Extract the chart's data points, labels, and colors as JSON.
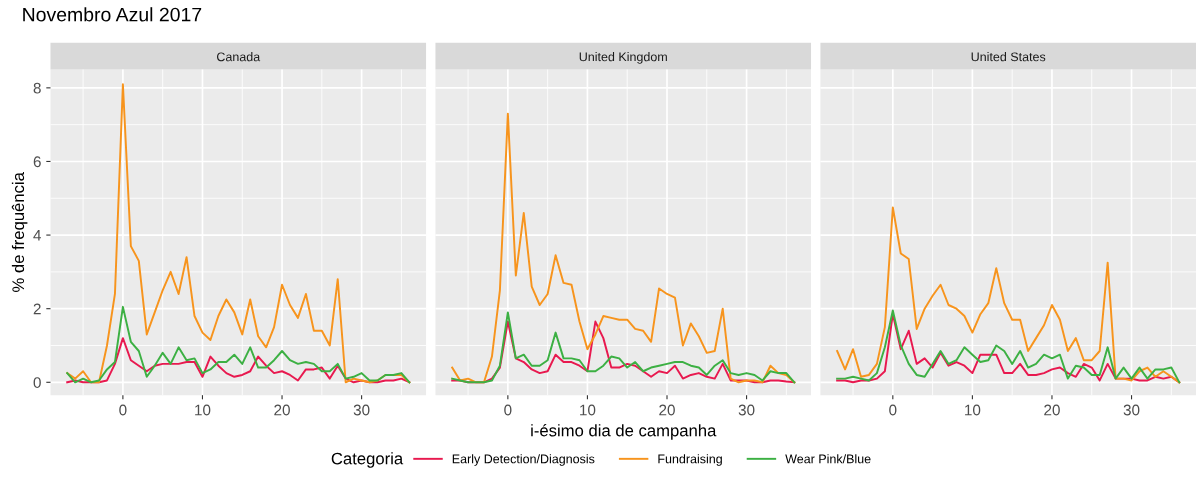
{
  "chart_data": [
    {
      "type": "line",
      "title": "Novembro Azul 2017",
      "subtitle": "Canada",
      "ylabel": "% de frequência",
      "legend_title": "Categoria",
      "legend": "bottom",
      "grid": true,
      "xlim": [
        -9.1,
        38.1
      ],
      "ylim": [
        -0.35,
        8.5
      ],
      "xticks": [
        0,
        10,
        20,
        30
      ],
      "yticks": [
        0,
        2,
        4,
        6,
        8
      ],
      "x": [
        -7,
        -6,
        -5,
        -4,
        -3,
        -2,
        -1,
        0,
        1,
        2,
        3,
        4,
        5,
        6,
        7,
        8,
        9,
        10,
        11,
        12,
        13,
        14,
        15,
        16,
        17,
        18,
        19,
        20,
        21,
        22,
        23,
        24,
        25,
        26,
        27,
        28,
        29,
        30,
        31,
        32,
        33,
        34,
        35,
        36
      ],
      "series": [
        {
          "name": "Early Detection/Diagnosis",
          "color": "#e8194f",
          "values": [
            0,
            0.05,
            0,
            0,
            0,
            0.05,
            0.5,
            1.2,
            0.6,
            0.45,
            0.3,
            0.45,
            0.5,
            0.5,
            0.5,
            0.55,
            0.55,
            0.15,
            0.7,
            0.45,
            0.25,
            0.15,
            0.2,
            0.3,
            0.7,
            0.45,
            0.25,
            0.3,
            0.2,
            0.05,
            0.35,
            0.35,
            0.4,
            0.1,
            0.45,
            0.1,
            0,
            0.05,
            0,
            0,
            0.05,
            0.05,
            0.1,
            0
          ]
        },
        {
          "name": "Fundraising",
          "color": "#f7941d",
          "values": [
            0.25,
            0.1,
            0.3,
            0,
            0,
            1.0,
            2.4,
            8.1,
            3.7,
            3.3,
            1.3,
            1.9,
            2.5,
            3.0,
            2.4,
            3.4,
            1.8,
            1.35,
            1.15,
            1.8,
            2.25,
            1.9,
            1.3,
            2.25,
            1.25,
            0.95,
            1.5,
            2.65,
            2.1,
            1.75,
            2.4,
            1.4,
            1.4,
            1.0,
            2.8,
            0,
            0.1,
            0.05,
            0,
            0.05,
            0.2,
            0.2,
            0.2,
            0
          ]
        },
        {
          "name": "Wear Pink/Blue",
          "color": "#3cb043",
          "values": [
            0.25,
            0,
            0.1,
            0,
            0.05,
            0.35,
            0.55,
            2.05,
            1.1,
            0.85,
            0.15,
            0.45,
            0.8,
            0.5,
            0.95,
            0.6,
            0.65,
            0.25,
            0.35,
            0.55,
            0.55,
            0.75,
            0.5,
            0.95,
            0.4,
            0.4,
            0.6,
            0.85,
            0.6,
            0.5,
            0.55,
            0.5,
            0.3,
            0.3,
            0.5,
            0.1,
            0.15,
            0.25,
            0.05,
            0.05,
            0.2,
            0.2,
            0.25,
            0
          ]
        }
      ]
    },
    {
      "type": "line",
      "subtitle": "United Kingdom",
      "xlabel": "i-ésimo dia de campanha",
      "grid": true,
      "tick_labels": "x",
      "xlim": [
        -9.1,
        38.1
      ],
      "ylim": [
        -0.35,
        8.5
      ],
      "xticks": [
        0,
        10,
        20,
        30
      ],
      "yticks": [
        0,
        2,
        4,
        6,
        8
      ],
      "x": [
        -7,
        -6,
        -5,
        -4,
        -3,
        -2,
        -1,
        0,
        1,
        2,
        3,
        4,
        5,
        6,
        7,
        8,
        9,
        10,
        11,
        12,
        13,
        14,
        15,
        16,
        17,
        18,
        19,
        20,
        21,
        22,
        23,
        24,
        25,
        26,
        27,
        28,
        29,
        30,
        31,
        32,
        33,
        34,
        35,
        36
      ],
      "series": [
        {
          "color": "#e8194f",
          "values": [
            0.05,
            0.05,
            0,
            0,
            0,
            0.1,
            0.4,
            1.65,
            0.65,
            0.55,
            0.35,
            0.25,
            0.3,
            0.75,
            0.55,
            0.55,
            0.45,
            0.3,
            1.65,
            1.2,
            0.4,
            0.4,
            0.5,
            0.45,
            0.3,
            0.15,
            0.3,
            0.25,
            0.45,
            0.1,
            0.2,
            0.25,
            0.15,
            0.1,
            0.5,
            0.05,
            0.05,
            0.05,
            0,
            0,
            0.05,
            0.05,
            0.02,
            0
          ]
        },
        {
          "color": "#f7941d",
          "values": [
            0.4,
            0.05,
            0.1,
            0,
            0,
            0.7,
            2.5,
            7.3,
            2.9,
            4.6,
            2.6,
            2.1,
            2.4,
            3.45,
            2.7,
            2.65,
            1.65,
            0.9,
            1.3,
            1.8,
            1.75,
            1.7,
            1.7,
            1.45,
            1.4,
            1.1,
            2.55,
            2.4,
            2.3,
            1.0,
            1.6,
            1.25,
            0.8,
            0.85,
            2.0,
            0.1,
            0,
            0.05,
            0.05,
            0,
            0.45,
            0.25,
            0.2,
            0
          ]
        },
        {
          "color": "#3cb043",
          "values": [
            0.1,
            0.05,
            0,
            0,
            0,
            0.05,
            0.45,
            1.9,
            0.65,
            0.75,
            0.45,
            0.45,
            0.6,
            1.35,
            0.65,
            0.65,
            0.6,
            0.3,
            0.3,
            0.45,
            0.7,
            0.65,
            0.4,
            0.55,
            0.3,
            0.4,
            0.45,
            0.5,
            0.55,
            0.55,
            0.45,
            0.4,
            0.2,
            0.45,
            0.6,
            0.25,
            0.2,
            0.25,
            0.2,
            0.05,
            0.3,
            0.25,
            0.25,
            0
          ]
        }
      ]
    },
    {
      "type": "line",
      "subtitle": "United States",
      "grid": true,
      "tick_labels": "x",
      "xlim": [
        -9.1,
        38.1
      ],
      "ylim": [
        -0.35,
        8.5
      ],
      "xticks": [
        0,
        10,
        20,
        30
      ],
      "yticks": [
        0,
        2,
        4,
        6,
        8
      ],
      "x": [
        -7,
        -6,
        -5,
        -4,
        -3,
        -2,
        -1,
        0,
        1,
        2,
        3,
        4,
        5,
        6,
        7,
        8,
        9,
        10,
        11,
        12,
        13,
        14,
        15,
        16,
        17,
        18,
        19,
        20,
        21,
        22,
        23,
        24,
        25,
        26,
        27,
        28,
        29,
        30,
        31,
        32,
        33,
        34,
        35,
        36
      ],
      "series": [
        {
          "color": "#e8194f",
          "values": [
            0.05,
            0.05,
            0,
            0.05,
            0.05,
            0.1,
            0.3,
            1.85,
            0.9,
            1.4,
            0.5,
            0.65,
            0.4,
            0.8,
            0.45,
            0.55,
            0.45,
            0.25,
            0.75,
            0.75,
            0.75,
            0.25,
            0.25,
            0.5,
            0.2,
            0.2,
            0.25,
            0.35,
            0.4,
            0.25,
            0.15,
            0.5,
            0.4,
            0.05,
            0.5,
            0.1,
            0.1,
            0.1,
            0.05,
            0.05,
            0.15,
            0.1,
            0.15,
            0
          ]
        },
        {
          "color": "#f7941d",
          "values": [
            0.85,
            0.35,
            0.9,
            0.15,
            0.2,
            0.5,
            1.5,
            4.75,
            3.5,
            3.35,
            1.45,
            2.0,
            2.35,
            2.65,
            2.1,
            2.0,
            1.8,
            1.35,
            1.85,
            2.15,
            3.1,
            2.15,
            1.7,
            1.7,
            0.85,
            1.2,
            1.55,
            2.1,
            1.7,
            0.85,
            1.2,
            0.6,
            0.6,
            0.85,
            3.25,
            0.1,
            0.1,
            0.05,
            0.3,
            0.4,
            0.15,
            0.3,
            0.15,
            0
          ]
        },
        {
          "color": "#3cb043",
          "values": [
            0.1,
            0.1,
            0.15,
            0.1,
            0.05,
            0.25,
            0.95,
            1.95,
            1.0,
            0.5,
            0.2,
            0.15,
            0.5,
            0.85,
            0.5,
            0.6,
            0.95,
            0.75,
            0.55,
            0.6,
            1.0,
            0.85,
            0.5,
            0.85,
            0.4,
            0.5,
            0.75,
            0.65,
            0.75,
            0.1,
            0.45,
            0.4,
            0.2,
            0.2,
            0.95,
            0.1,
            0.4,
            0.1,
            0.4,
            0.1,
            0.35,
            0.35,
            0.4,
            0
          ]
        }
      ]
    }
  ]
}
